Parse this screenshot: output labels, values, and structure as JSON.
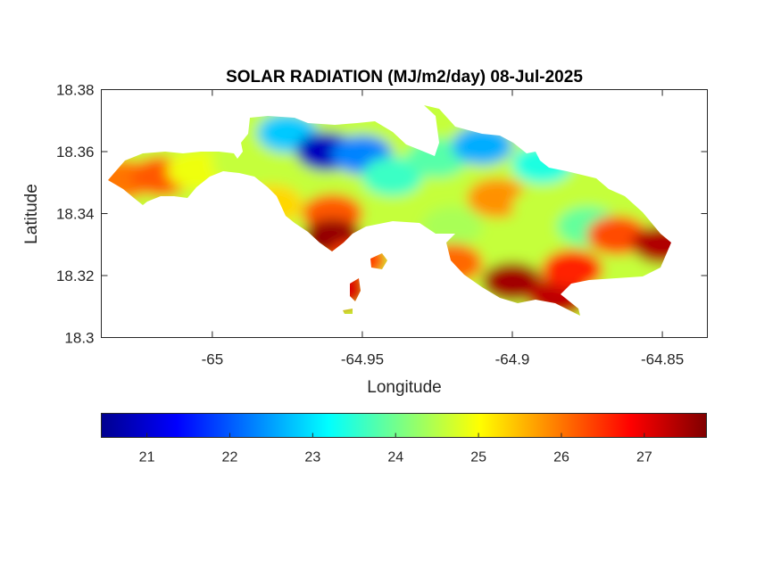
{
  "chart_data": {
    "type": "heatmap",
    "title": "SOLAR RADIATION (MJ/m2/day) 08-Jul-2025",
    "xlabel": "Longitude",
    "ylabel": "Latitude",
    "xlim": [
      -65.037,
      -64.835
    ],
    "ylim": [
      18.3,
      18.38
    ],
    "xticks": [
      -65,
      -64.95,
      -64.9,
      -64.85
    ],
    "xtick_labels": [
      "-65",
      "-64.95",
      "-64.9",
      "-64.85"
    ],
    "yticks": [
      18.3,
      18.32,
      18.34,
      18.36,
      18.38
    ],
    "ytick_labels": [
      "18.3",
      "18.32",
      "18.34",
      "18.36",
      "18.38"
    ],
    "grid": false,
    "colormap": "jet",
    "colorbar": {
      "orientation": "horizontal",
      "location": "below",
      "range": [
        20.45,
        27.75
      ],
      "ticks": [
        21,
        22,
        23,
        24,
        25,
        26,
        27
      ],
      "tick_labels": [
        "21",
        "22",
        "23",
        "24",
        "25",
        "26",
        "27"
      ]
    },
    "approx_field": [
      {
        "lon": -65.03,
        "lat": 18.351,
        "value": 26.0
      },
      {
        "lon": -65.017,
        "lat": 18.352,
        "value": 26.2
      },
      {
        "lon": -65.005,
        "lat": 18.354,
        "value": 24.9
      },
      {
        "lon": -64.99,
        "lat": 18.356,
        "value": 24.6
      },
      {
        "lon": -64.975,
        "lat": 18.366,
        "value": 22.8
      },
      {
        "lon": -64.962,
        "lat": 18.36,
        "value": 20.9
      },
      {
        "lon": -64.95,
        "lat": 18.359,
        "value": 22.3
      },
      {
        "lon": -64.94,
        "lat": 18.352,
        "value": 23.6
      },
      {
        "lon": -64.925,
        "lat": 18.358,
        "value": 23.8
      },
      {
        "lon": -64.91,
        "lat": 18.362,
        "value": 22.6
      },
      {
        "lon": -64.89,
        "lat": 18.356,
        "value": 23.4
      },
      {
        "lon": -64.98,
        "lat": 18.343,
        "value": 25.3
      },
      {
        "lon": -64.96,
        "lat": 18.34,
        "value": 26.2
      },
      {
        "lon": -64.96,
        "lat": 18.332,
        "value": 27.6
      },
      {
        "lon": -64.952,
        "lat": 18.325,
        "value": 26.4
      },
      {
        "lon": -64.958,
        "lat": 18.315,
        "value": 27.1
      },
      {
        "lon": -64.92,
        "lat": 18.336,
        "value": 24.4
      },
      {
        "lon": -64.905,
        "lat": 18.345,
        "value": 25.8
      },
      {
        "lon": -64.89,
        "lat": 18.342,
        "value": 24.6
      },
      {
        "lon": -64.875,
        "lat": 18.336,
        "value": 23.9
      },
      {
        "lon": -64.865,
        "lat": 18.333,
        "value": 26.3
      },
      {
        "lon": -64.85,
        "lat": 18.33,
        "value": 27.4
      },
      {
        "lon": -64.92,
        "lat": 18.324,
        "value": 26.1
      },
      {
        "lon": -64.9,
        "lat": 18.318,
        "value": 27.5
      },
      {
        "lon": -64.885,
        "lat": 18.313,
        "value": 27.3
      },
      {
        "lon": -64.88,
        "lat": 18.322,
        "value": 26.6
      }
    ]
  }
}
